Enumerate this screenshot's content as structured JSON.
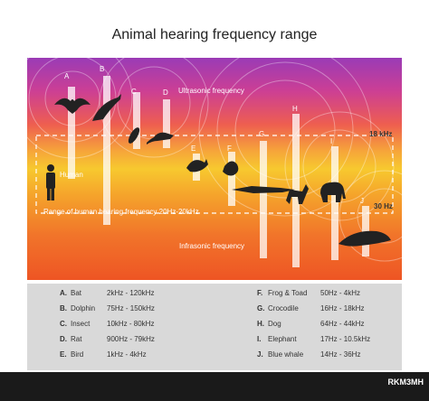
{
  "title": "Animal hearing frequency range",
  "labels": {
    "ultrasonic": "Ultrasonic frequency",
    "infrasonic": "Infrasonic frequency",
    "human": "Human",
    "range": "Range of human hearing frequency 20Hz-20kHz",
    "k18": "18 kHz",
    "hz30": "30 Hz"
  },
  "markers": [
    "A",
    "B",
    "C",
    "D",
    "E",
    "F",
    "G",
    "H",
    "I",
    "J"
  ],
  "legend": [
    {
      "key": "A.",
      "name": "Bat",
      "range": "2kHz - 120kHz"
    },
    {
      "key": "B.",
      "name": "Dolphin",
      "range": "75Hz - 150kHz"
    },
    {
      "key": "C.",
      "name": "Insect",
      "range": "10kHz - 80kHz"
    },
    {
      "key": "D.",
      "name": "Rat",
      "range": "900Hz - 79kHz"
    },
    {
      "key": "E.",
      "name": "Bird",
      "range": "1kHz - 4kHz"
    },
    {
      "key": "F.",
      "name": "Frog & Toad",
      "range": "50Hz - 4kHz"
    },
    {
      "key": "G.",
      "name": "Crocodile",
      "range": "16Hz - 18kHz"
    },
    {
      "key": "H.",
      "name": "Dog",
      "range": "64Hz - 44kHz"
    },
    {
      "key": "I.",
      "name": "Elephant",
      "range": "17Hz - 10.5kHz"
    },
    {
      "key": "J.",
      "name": "Blue whale",
      "range": "14Hz - 36Hz"
    }
  ],
  "watermark": "RKM3MH",
  "colors": {
    "dashed": "#ffffff",
    "silhouette": "#222222"
  }
}
